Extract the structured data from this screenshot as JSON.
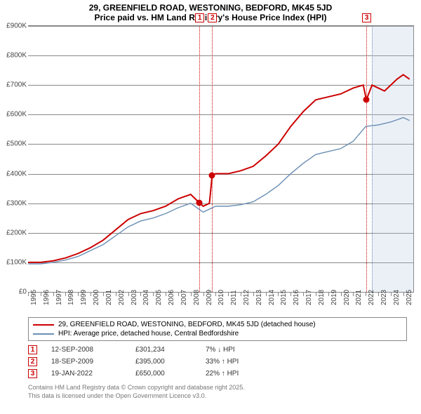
{
  "title": "29, GREENFIELD ROAD, WESTONING, BEDFORD, MK45 5JD",
  "subtitle": "Price paid vs. HM Land Registry's House Price Index (HPI)",
  "chart": {
    "type": "line",
    "ylim": [
      0,
      900000
    ],
    "ytick_step": 100000,
    "xlim": [
      1995,
      2025.8
    ],
    "xticks": [
      1995,
      1996,
      1997,
      1998,
      1999,
      2000,
      2001,
      2002,
      2003,
      2004,
      2005,
      2006,
      2007,
      2008,
      2009,
      2010,
      2011,
      2012,
      2013,
      2014,
      2015,
      2016,
      2017,
      2018,
      2019,
      2020,
      2021,
      2022,
      2023,
      2024,
      2025
    ],
    "ylabels": [
      "£0",
      "£100K",
      "£200K",
      "£300K",
      "£400K",
      "£500K",
      "£600K",
      "£700K",
      "£800K",
      "£900K"
    ],
    "grid_color": "#888888",
    "background": "#ffffff",
    "series": [
      {
        "name": "property",
        "label": "29, GREENFIELD ROAD, WESTONING, BEDFORD, MK45 5JD (detached house)",
        "color": "#cc0000",
        "width": 2,
        "points": [
          [
            1995,
            100000
          ],
          [
            1996,
            100000
          ],
          [
            1997,
            105000
          ],
          [
            1998,
            115000
          ],
          [
            1999,
            130000
          ],
          [
            2000,
            150000
          ],
          [
            2001,
            175000
          ],
          [
            2002,
            210000
          ],
          [
            2003,
            245000
          ],
          [
            2004,
            265000
          ],
          [
            2005,
            275000
          ],
          [
            2006,
            290000
          ],
          [
            2007,
            315000
          ],
          [
            2008,
            330000
          ],
          [
            2008.7,
            301234
          ],
          [
            2009,
            290000
          ],
          [
            2009.5,
            300000
          ],
          [
            2009.72,
            395000
          ],
          [
            2010,
            400000
          ],
          [
            2011,
            400000
          ],
          [
            2012,
            410000
          ],
          [
            2013,
            425000
          ],
          [
            2014,
            460000
          ],
          [
            2015,
            500000
          ],
          [
            2016,
            560000
          ],
          [
            2017,
            610000
          ],
          [
            2018,
            650000
          ],
          [
            2019,
            660000
          ],
          [
            2020,
            670000
          ],
          [
            2021,
            690000
          ],
          [
            2021.8,
            700000
          ],
          [
            2022.05,
            650000
          ],
          [
            2022.5,
            700000
          ],
          [
            2023,
            690000
          ],
          [
            2023.5,
            680000
          ],
          [
            2024,
            700000
          ],
          [
            2024.5,
            720000
          ],
          [
            2025,
            735000
          ],
          [
            2025.5,
            720000
          ]
        ]
      },
      {
        "name": "hpi",
        "label": "HPI: Average price, detached house, Central Bedfordshire",
        "color": "#6b8fb5",
        "width": 1.4,
        "points": [
          [
            1995,
            95000
          ],
          [
            1996,
            95000
          ],
          [
            1997,
            100000
          ],
          [
            1998,
            108000
          ],
          [
            1999,
            120000
          ],
          [
            2000,
            140000
          ],
          [
            2001,
            160000
          ],
          [
            2002,
            190000
          ],
          [
            2003,
            220000
          ],
          [
            2004,
            240000
          ],
          [
            2005,
            250000
          ],
          [
            2006,
            265000
          ],
          [
            2007,
            285000
          ],
          [
            2008,
            300000
          ],
          [
            2009,
            270000
          ],
          [
            2010,
            290000
          ],
          [
            2011,
            290000
          ],
          [
            2012,
            295000
          ],
          [
            2013,
            305000
          ],
          [
            2014,
            330000
          ],
          [
            2015,
            360000
          ],
          [
            2016,
            400000
          ],
          [
            2017,
            435000
          ],
          [
            2018,
            465000
          ],
          [
            2019,
            475000
          ],
          [
            2020,
            485000
          ],
          [
            2021,
            510000
          ],
          [
            2022,
            560000
          ],
          [
            2023,
            565000
          ],
          [
            2024,
            575000
          ],
          [
            2025,
            590000
          ],
          [
            2025.5,
            580000
          ]
        ]
      }
    ],
    "sale_markers": [
      {
        "n": "1",
        "x": 2008.7,
        "y": 301234,
        "box_y": 20000
      },
      {
        "n": "2",
        "x": 2009.72,
        "y": 395000,
        "box_y": 20000
      },
      {
        "n": "3",
        "x": 2022.05,
        "y": 650000,
        "box_y": 20000
      }
    ],
    "forecast_shade": {
      "from": 2022.5,
      "to": 2025.8,
      "color": "rgba(176,196,222,0.25)"
    },
    "vline_colors": {
      "sale": "#cc0000",
      "shade_edge": "#6b8fb5"
    }
  },
  "legend": {
    "items": [
      {
        "color": "#cc0000",
        "label": "29, GREENFIELD ROAD, WESTONING, BEDFORD, MK45 5JD (detached house)"
      },
      {
        "color": "#6b8fb5",
        "label": "HPI: Average price, detached house, Central Bedfordshire"
      }
    ]
  },
  "sales": [
    {
      "n": "1",
      "date": "12-SEP-2008",
      "price": "£301,234",
      "delta": "7% ↓ HPI"
    },
    {
      "n": "2",
      "date": "18-SEP-2009",
      "price": "£395,000",
      "delta": "33% ↑ HPI"
    },
    {
      "n": "3",
      "date": "19-JAN-2022",
      "price": "£650,000",
      "delta": "22% ↑ HPI"
    }
  ],
  "footer": {
    "line1": "Contains HM Land Registry data © Crown copyright and database right 2025.",
    "line2": "This data is licensed under the Open Government Licence v3.0."
  }
}
